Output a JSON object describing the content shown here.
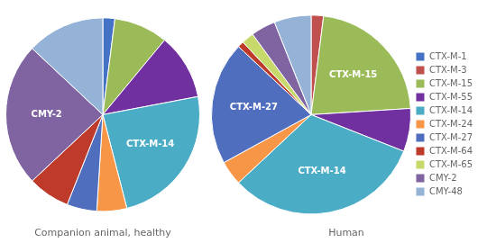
{
  "chart_data": [
    {
      "type": "pie",
      "title": "Companion animal, healthy",
      "categories": [
        "CTX-M-1",
        "CTX-M-3",
        "CTX-M-15",
        "CTX-M-55",
        "CTX-M-14",
        "CTX-M-24",
        "CTX-M-27",
        "CTX-M-64",
        "CTX-M-65",
        "CMY-2",
        "CMY-48"
      ],
      "values": [
        2,
        0,
        9,
        11,
        24,
        5,
        5,
        7,
        0,
        24,
        13
      ],
      "colors": [
        "#4472C4",
        "#C0504D",
        "#9BBB59",
        "#7030A0",
        "#4BACC6",
        "#F79646",
        "#4F6EBE",
        "#BE3A2A",
        "#C6D96A",
        "#8064A2",
        "#95B3D7"
      ],
      "annotations": [
        "CTX-M-14",
        "CMY-2"
      ]
    },
    {
      "type": "pie",
      "title": "Human",
      "categories": [
        "CTX-M-1",
        "CTX-M-3",
        "CTX-M-15",
        "CTX-M-55",
        "CTX-M-14",
        "CTX-M-24",
        "CTX-M-27",
        "CTX-M-64",
        "CTX-M-65",
        "CMY-2",
        "CMY-48"
      ],
      "values": [
        0,
        2,
        22,
        7,
        32,
        4,
        20,
        1,
        2,
        4,
        6
      ],
      "colors": [
        "#4472C4",
        "#C0504D",
        "#9BBB59",
        "#7030A0",
        "#4BACC6",
        "#F79646",
        "#4F6EBE",
        "#BE3A2A",
        "#C6D96A",
        "#8064A2",
        "#95B3D7"
      ],
      "annotations": [
        "CTX-M-15",
        "CTX-M-14",
        "CTX-M-27"
      ],
      "legend": "right"
    }
  ]
}
